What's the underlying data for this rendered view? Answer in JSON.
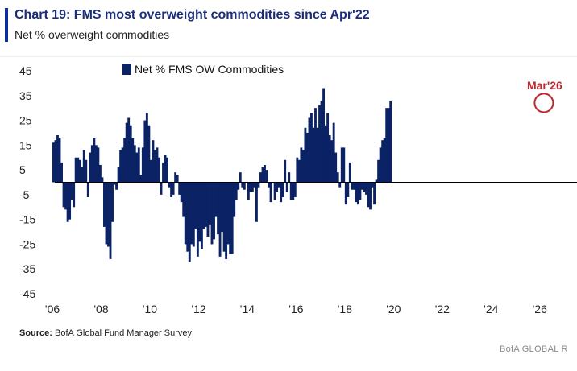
{
  "header": {
    "title": "Chart 19: FMS most overweight commodities since Apr'22",
    "subtitle": "Net % overweight commodities"
  },
  "footer": {
    "source_label": "Source:",
    "source_text": " BofA Global Fund Manager Survey",
    "brand": "BofA GLOBAL R"
  },
  "colors": {
    "bar": "#0b2265",
    "accent": "#0b2d9e",
    "annotation": "#c0272d"
  },
  "chart_data": {
    "type": "bar",
    "title": "Chart 19: FMS most overweight commodities since Apr'22",
    "ylabel": "Net % overweight commodities",
    "ylim": [
      -45,
      45
    ],
    "yticks": [
      45,
      35,
      25,
      15,
      5,
      -5,
      -15,
      -25,
      -35,
      -45
    ],
    "xlim": [
      2005.9,
      2027.0
    ],
    "xticks": [
      {
        "value": 2006,
        "label": "'06"
      },
      {
        "value": 2008,
        "label": "'08"
      },
      {
        "value": 2010,
        "label": "'10"
      },
      {
        "value": 2012,
        "label": "'12"
      },
      {
        "value": 2014,
        "label": "'14"
      },
      {
        "value": 2016,
        "label": "'16"
      },
      {
        "value": 2018,
        "label": "'18"
      },
      {
        "value": 2020,
        "label": "'20"
      },
      {
        "value": 2022,
        "label": "'22"
      },
      {
        "value": 2024,
        "label": "'24"
      },
      {
        "value": 2026,
        "label": "'26"
      }
    ],
    "legend": {
      "label": "Net % FMS OW Commodities",
      "position": "top-center"
    },
    "annotation": {
      "label": "Mar'26",
      "x": 2026.17,
      "y": 33
    },
    "series": [
      {
        "name": "Net % FMS OW Commodities",
        "start": 2006.0,
        "step": 0.08333,
        "values": [
          16,
          17,
          19,
          18,
          8,
          -10,
          -11,
          -16,
          -15,
          -7,
          -10,
          10,
          10,
          9,
          6,
          13,
          9,
          -6,
          12,
          15,
          18,
          15,
          14,
          7,
          2,
          -18,
          -25,
          -26,
          -31,
          -16,
          -1,
          -3,
          6,
          13,
          14,
          18,
          24,
          26,
          23,
          18,
          15,
          12,
          14,
          3,
          14,
          25,
          28,
          23,
          9,
          17,
          13,
          14,
          10,
          -5,
          8,
          11,
          10,
          -2,
          -6,
          -5,
          4,
          3,
          -5,
          -8,
          -14,
          -25,
          -28,
          -32,
          -25,
          -26,
          -19,
          -30,
          -24,
          -27,
          -19,
          -18,
          -22,
          -17,
          -25,
          -23,
          -14,
          -21,
          -30,
          -20,
          -28,
          -31,
          -25,
          -29,
          -29,
          -14,
          -7,
          -3,
          4,
          -2,
          -3,
          0,
          -7,
          -4,
          -4,
          -2,
          -16,
          -2,
          4,
          6,
          7,
          5,
          -2,
          -8,
          0,
          -7,
          -4,
          -2,
          -8,
          -6,
          9,
          -4,
          4,
          -7,
          -7,
          -6,
          10,
          9,
          14,
          13,
          22,
          20,
          26,
          28,
          22,
          30,
          22,
          31,
          33,
          38,
          23,
          28,
          19,
          17,
          24,
          12,
          4,
          -2,
          14,
          14,
          -9,
          -6,
          8,
          -3,
          -3,
          -8,
          -9,
          -7,
          -3,
          -4,
          -5,
          -10,
          -11,
          -2,
          -9,
          1,
          9,
          14,
          17,
          18,
          30,
          30,
          33
        ]
      }
    ]
  }
}
